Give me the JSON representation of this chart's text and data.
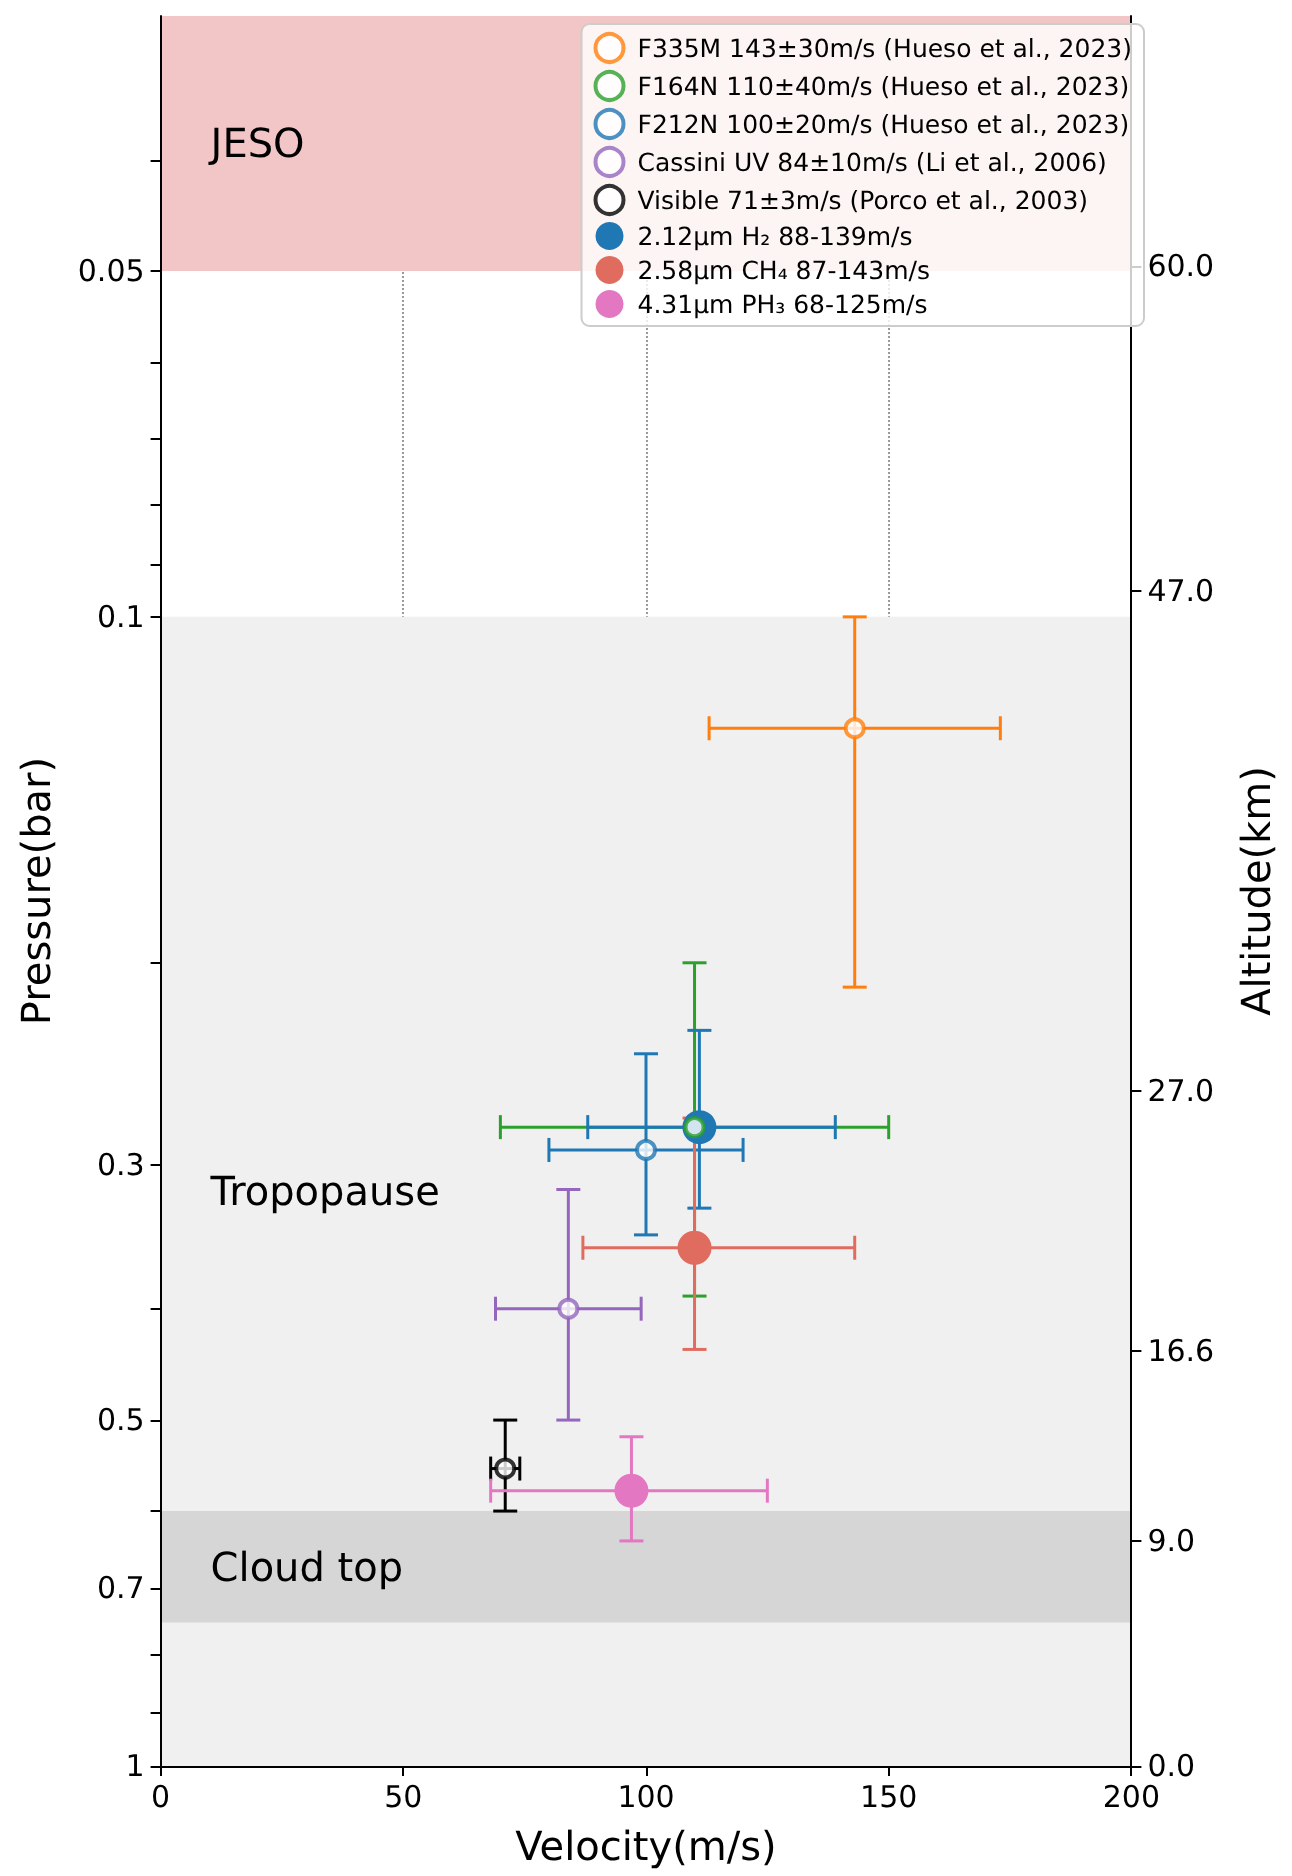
{
  "chart_data": {
    "type": "scatter",
    "xlabel": "Velocity(m/s)",
    "ylabel": "Pressure(bar)",
    "y2label": "Altitude(km)",
    "xlim": [
      0,
      200
    ],
    "xticks": [
      0,
      50,
      100,
      150,
      200
    ],
    "ylim": [
      1,
      0.03
    ],
    "log": "y",
    "yticks": [
      0.05,
      0.1,
      0.3,
      0.5,
      0.7,
      1,
      {
        "value": 0.04,
        "label": null
      },
      {
        "value": 0.06,
        "label": null
      },
      {
        "value": 0.07,
        "label": null
      },
      {
        "value": 0.08,
        "label": null
      },
      {
        "value": 0.09,
        "label": null
      },
      {
        "value": 0.2,
        "label": null
      },
      {
        "value": 0.4,
        "label": null
      },
      {
        "value": 0.6,
        "label": null
      },
      {
        "value": 0.8,
        "label": null
      },
      {
        "value": 0.9,
        "label": null
      }
    ],
    "y2lim": [
      0,
      70
    ],
    "y2ticks": [
      {
        "value": 60,
        "label": "60.0"
      },
      {
        "value": 47,
        "label": "47.0"
      },
      {
        "value": 27,
        "label": "27.0"
      },
      {
        "value": 16.6,
        "label": "16.6"
      },
      {
        "value": 9,
        "label": "9.0"
      },
      {
        "value": 0,
        "label": "0.0"
      }
    ],
    "grid": "x",
    "legend": "top right",
    "marker": "circle",
    "bands": [
      {
        "axis": "y",
        "from": 0.03,
        "to": 0.05,
        "label": "JESO",
        "color": "#f2c6c6"
      },
      {
        "axis": "y",
        "from": 0.1,
        "to": 1,
        "label": "Tropopause",
        "color": "#f0f0f0"
      },
      {
        "axis": "y",
        "from": 0.6,
        "to": 0.75,
        "label": "Cloud top",
        "color": "#d6d6d6"
      }
    ],
    "series": [
      {
        "name": "F335M 143±30m/s (Hueso et al., 2023)",
        "color": "#ff7f0e",
        "x": [
          143
        ],
        "values": [
          0.125
        ],
        "xerrors": [
          30
        ],
        "errors": [
          [
            0.1,
            0.21
          ]
        ]
      },
      {
        "name": "F164N 110±40m/s (Hueso et al., 2023)",
        "color": "#2ca02c",
        "x": [
          110
        ],
        "values": [
          0.278
        ],
        "xerrors": [
          40
        ],
        "errors": [
          [
            0.2,
            0.39
          ]
        ]
      },
      {
        "name": "F212N 100±20m/s (Hueso et al., 2023)",
        "color": "#1f77b4",
        "x": [
          100
        ],
        "values": [
          0.291
        ],
        "xerrors": [
          20
        ],
        "errors": [
          [
            0.24,
            0.345
          ]
        ]
      },
      {
        "name": "Cassini UV 84±10m/s (Li et al., 2006)",
        "color": "#9467bd",
        "x": [
          84
        ],
        "values": [
          0.4
        ],
        "xerrors": [
          15
        ],
        "errors": [
          [
            0.315,
            0.5
          ]
        ]
      },
      {
        "name": "Visible 71±3m/s (Porco et al., 2003)",
        "color": "#000000",
        "x": [
          71
        ],
        "values": [
          0.551
        ],
        "xerrors": [
          3
        ],
        "errors": [
          [
            0.5,
            0.6
          ]
        ]
      },
      {
        "name": "2.12µm H₂ 88-139m/s",
        "color": "#1f77b4",
        "x": [
          111
        ],
        "values": [
          0.278
        ],
        "xerrors": [
          [
            88,
            139
          ]
        ],
        "errors": [
          [
            0.229,
            0.327
          ]
        ]
      },
      {
        "name": "2.58µm CH₄ 87-143m/s",
        "color": "#e06c60",
        "x": [
          110
        ],
        "values": [
          0.354
        ],
        "xerrors": [
          [
            87,
            143
          ]
        ],
        "errors": [
          [
            0.273,
            0.434
          ]
        ]
      },
      {
        "name": "4.31µm PH₃ 68-125m/s",
        "color": "#e377c2",
        "x": [
          97
        ],
        "values": [
          0.576
        ],
        "xerrors": [
          [
            68,
            125
          ]
        ],
        "errors": [
          [
            0.517,
            0.637
          ]
        ]
      }
    ]
  }
}
